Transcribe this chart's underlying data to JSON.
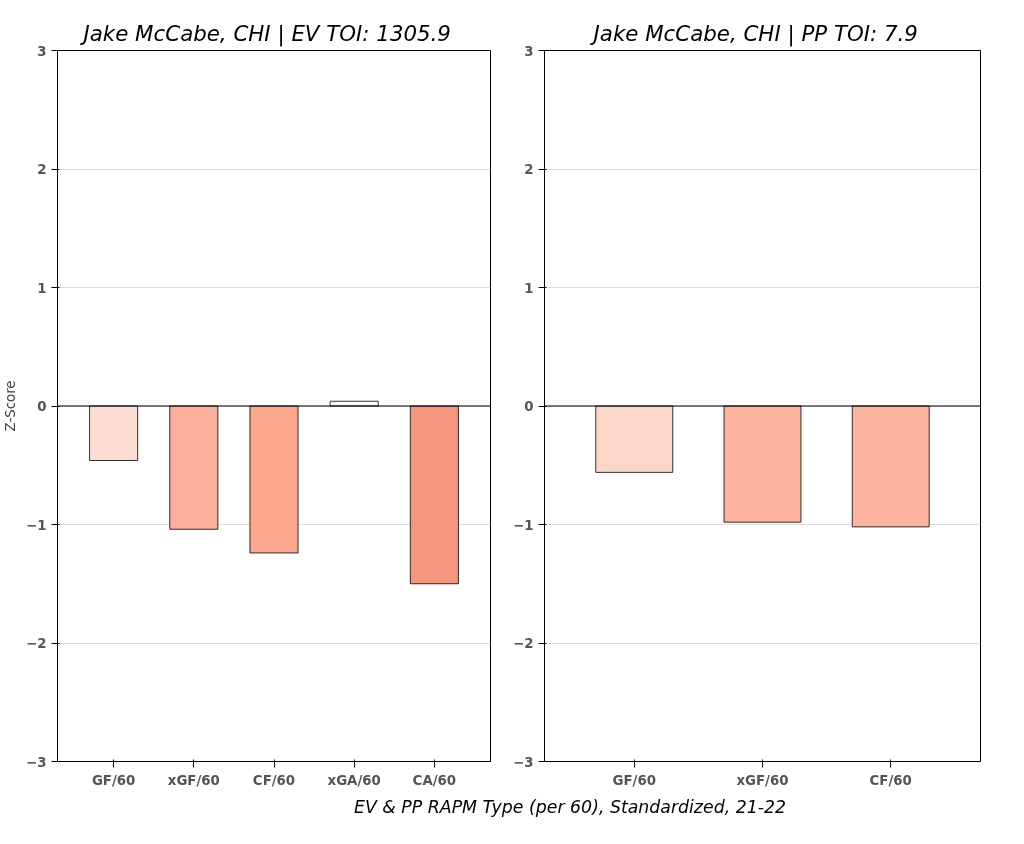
{
  "chart_data": [
    {
      "type": "bar",
      "title": "Jake McCabe, CHI  |  EV TOI: 1305.9",
      "ylabel": "Z-Score",
      "categories": [
        "GF/60",
        "xGF/60",
        "CF/60",
        "xGA/60",
        "CA/60"
      ],
      "values": [
        -0.46,
        -1.04,
        -1.24,
        0.04,
        -1.5
      ],
      "colors": [
        "#fddcd2",
        "#fcb09c",
        "#fba88f",
        "#fefefe",
        "#f4967e"
      ],
      "ylim": [
        -3,
        3
      ],
      "yticks": [
        -3,
        -2,
        -1,
        0,
        1,
        2,
        3
      ],
      "grid": "y",
      "ref_lines": [
        {
          "axis": "y",
          "value": 0,
          "color": "#000000"
        }
      ],
      "annotations": [
        "EV & PP RAPM Type (per 60), Standardized, 21-22"
      ]
    },
    {
      "type": "bar",
      "title": "Jake McCabe, CHI  |  PP TOI: 7.9",
      "categories": [
        "GF/60",
        "xGF/60",
        "CF/60"
      ],
      "values": [
        -0.56,
        -0.98,
        -1.02
      ],
      "colors": [
        "#fdd6ca",
        "#fcb3a0",
        "#fcb5a1"
      ],
      "ylim": [
        -3,
        3
      ],
      "yticks": [
        -3,
        -2,
        -1,
        0,
        1,
        2,
        3
      ],
      "grid": "y",
      "ref_lines": [
        {
          "axis": "y",
          "value": 0,
          "color": "#000000"
        }
      ]
    }
  ]
}
